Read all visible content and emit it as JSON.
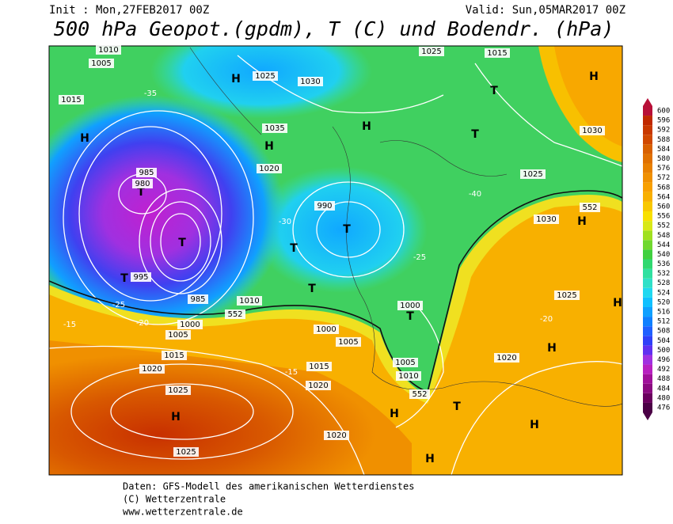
{
  "header": {
    "init": "Init : Mon,27FEB2017 00Z",
    "valid": "Valid: Sun,05MAR2017 00Z",
    "title": "500 hPa Geopot.(gpdm), T (C) und Bodendr. (hPa)"
  },
  "colorbar": {
    "levels": [
      476,
      480,
      484,
      488,
      492,
      496,
      500,
      504,
      508,
      512,
      516,
      520,
      524,
      528,
      532,
      536,
      540,
      544,
      548,
      552,
      556,
      560,
      564,
      568,
      572,
      576,
      580,
      584,
      588,
      592,
      596,
      600
    ],
    "colors": [
      "#4b0046",
      "#6a005e",
      "#8a0a80",
      "#a0109a",
      "#b820c0",
      "#a030e0",
      "#6030f0",
      "#3040f8",
      "#2060ff",
      "#1080ff",
      "#10a0ff",
      "#10c0ff",
      "#20d8f0",
      "#30e0c8",
      "#30e0a0",
      "#30d870",
      "#40d040",
      "#70d830",
      "#a0e020",
      "#d8e818",
      "#f8e000",
      "#f8c800",
      "#f8b000",
      "#f8a000",
      "#f09000",
      "#e88000",
      "#e07000",
      "#d86000",
      "#d04800",
      "#c83800",
      "#c02800",
      "#b81038"
    ]
  },
  "map_labels": [
    "1010",
    "1005",
    "1015",
    "H",
    "T",
    "T",
    "980",
    "985",
    "995",
    "T",
    "985",
    "1000",
    "1005",
    "1015",
    "1020",
    "1025",
    "H",
    "1025",
    "1020",
    "H",
    "H",
    "H",
    "T",
    "1010",
    "990",
    "T",
    "T",
    "T",
    "1000",
    "1005",
    "1015",
    "1020",
    "1000",
    "T",
    "1005",
    "1010",
    "552",
    "552",
    "552",
    "H",
    "H",
    "H",
    "H",
    "T",
    "T",
    "1025",
    "1015",
    "1030",
    "1025",
    "1035",
    "1020",
    "1025",
    "1030",
    "1030",
    "H",
    "H",
    "H",
    "1020",
    "1025",
    "-30",
    "-35",
    "-25",
    "-20",
    "-15",
    "-40",
    "-15",
    "-20",
    "-25"
  ],
  "footer": [
    "Daten: GFS-Modell des amerikanischen Wetterdienstes",
    "(C) Wetterzentrale",
    "www.wetterzentrale.de"
  ]
}
